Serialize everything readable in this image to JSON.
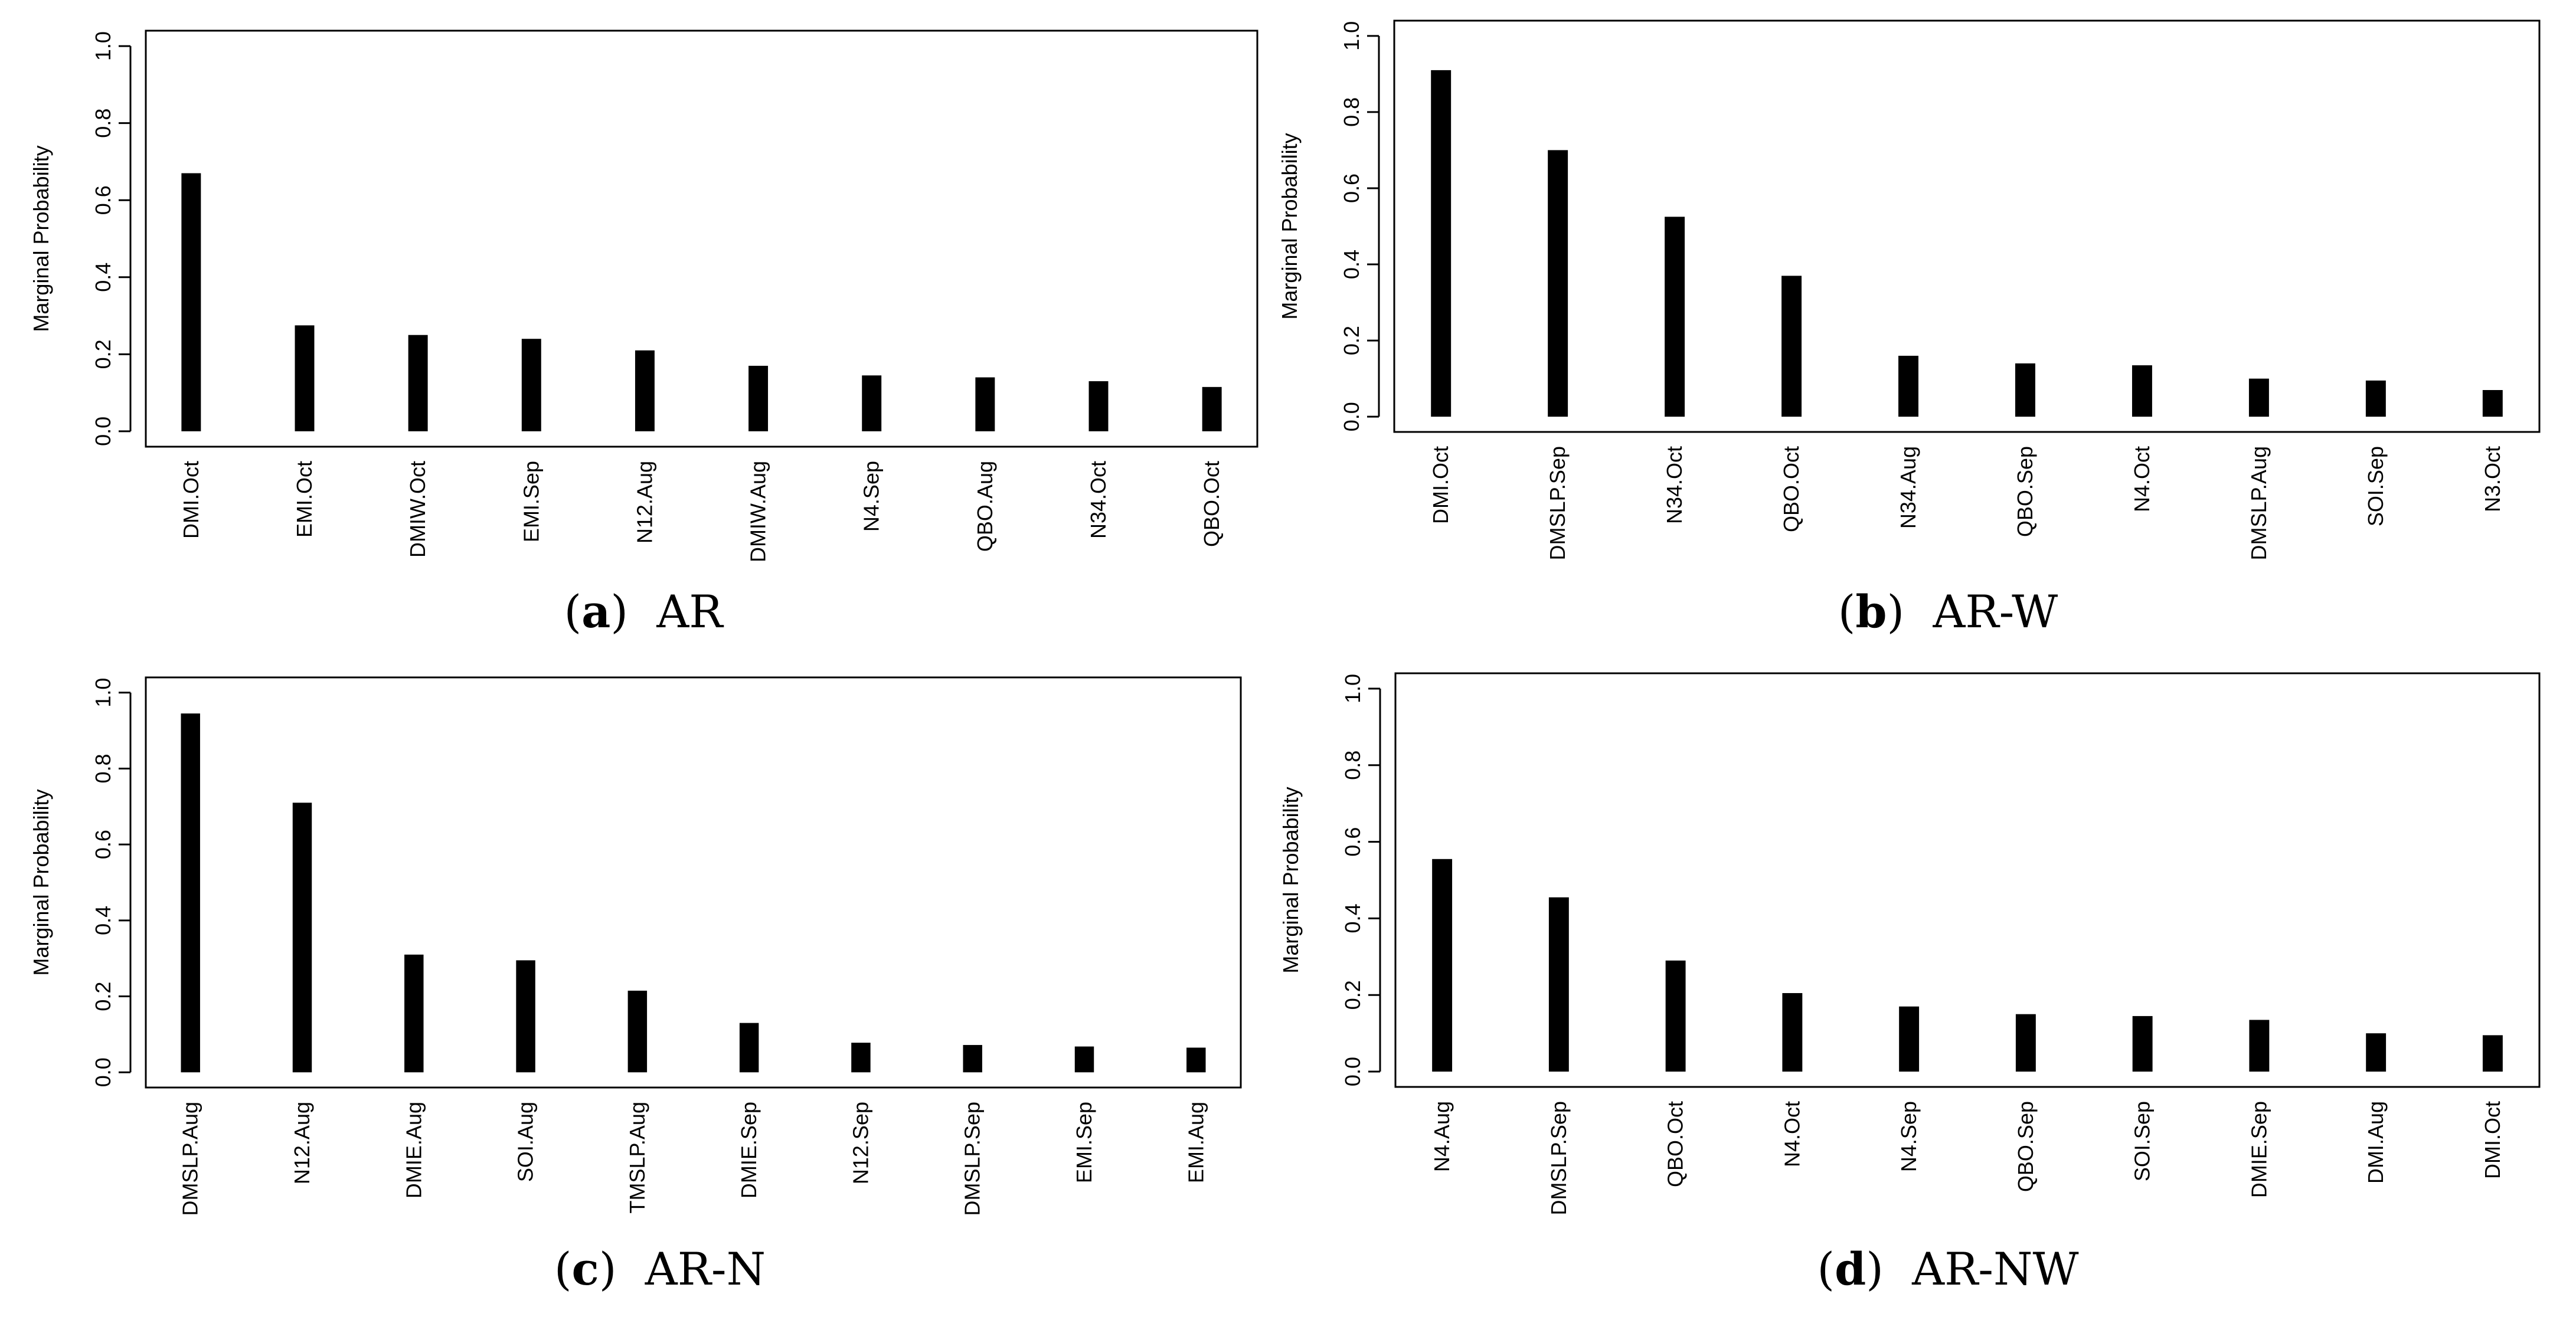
{
  "chart_data": [
    {
      "type": "bar",
      "panel_label": "a",
      "title": "AR",
      "ylabel": "Marginal Probability",
      "xlabel": "",
      "ylim": [
        0,
        1.0
      ],
      "yticks": [
        "0.0",
        "0.2",
        "0.4",
        "0.6",
        "0.8",
        "1.0"
      ],
      "categories": [
        "DMI.Oct",
        "EMI.Oct",
        "DMIW.Oct",
        "EMI.Sep",
        "N12.Aug",
        "DMIW.Aug",
        "N4.Sep",
        "QBO.Aug",
        "N34.Oct",
        "QBO.Oct"
      ],
      "values": [
        0.67,
        0.275,
        0.25,
        0.24,
        0.21,
        0.17,
        0.145,
        0.14,
        0.13,
        0.115
      ]
    },
    {
      "type": "bar",
      "panel_label": "b",
      "title": "AR-W",
      "ylabel": "Marginal Probability",
      "xlabel": "",
      "ylim": [
        0,
        1.0
      ],
      "yticks": [
        "0.0",
        "0.2",
        "0.4",
        "0.6",
        "0.8",
        "1.0"
      ],
      "categories": [
        "DMI.Oct",
        "DMSLP.Sep",
        "N34.Oct",
        "QBO.Oct",
        "N34.Aug",
        "QBO.Sep",
        "N4.Oct",
        "DMSLP.Aug",
        "SOI.Sep",
        "N3.Oct"
      ],
      "values": [
        0.91,
        0.7,
        0.525,
        0.37,
        0.16,
        0.14,
        0.135,
        0.1,
        0.095,
        0.07
      ]
    },
    {
      "type": "bar",
      "panel_label": "c",
      "title": "AR-N",
      "ylabel": "Marginal Probability",
      "xlabel": "",
      "ylim": [
        0,
        1.0
      ],
      "yticks": [
        "0.0",
        "0.2",
        "0.4",
        "0.6",
        "0.8",
        "1.0"
      ],
      "categories": [
        "DMSLP.Aug",
        "N12.Aug",
        "DMIE.Aug",
        "SOI.Aug",
        "TMSLP.Aug",
        "DMIE.Sep",
        "N12.Sep",
        "DMSLP.Sep",
        "EMI.Sep",
        "EMI.Aug"
      ],
      "values": [
        0.945,
        0.71,
        0.31,
        0.295,
        0.215,
        0.13,
        0.078,
        0.072,
        0.068,
        0.065
      ]
    },
    {
      "type": "bar",
      "panel_label": "d",
      "title": "AR-NW",
      "ylabel": "Marginal Probability",
      "xlabel": "",
      "ylim": [
        0,
        1.0
      ],
      "yticks": [
        "0.0",
        "0.2",
        "0.4",
        "0.6",
        "0.8",
        "1.0"
      ],
      "categories": [
        "N4.Aug",
        "DMSLP.Sep",
        "QBO.Oct",
        "N4.Oct",
        "N4.Sep",
        "QBO.Sep",
        "SOI.Sep",
        "DMIE.Sep",
        "DMI.Aug",
        "DMI.Oct"
      ],
      "values": [
        0.555,
        0.455,
        0.29,
        0.205,
        0.17,
        0.15,
        0.145,
        0.135,
        0.1,
        0.095
      ]
    }
  ]
}
